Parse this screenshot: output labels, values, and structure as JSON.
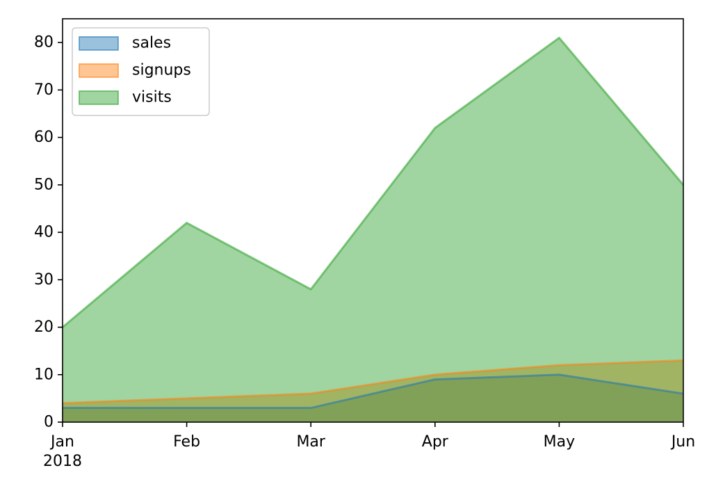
{
  "chart_data": {
    "type": "area",
    "x_labels": [
      "Jan",
      "Feb",
      "Mar",
      "Apr",
      "May",
      "Jun"
    ],
    "x_sublabel": "2018",
    "ylim": [
      0,
      85
    ],
    "y_ticks": [
      0,
      10,
      20,
      30,
      40,
      50,
      60,
      70,
      80
    ],
    "grid": false,
    "stacked": false,
    "legend_position": "upper-left",
    "series": [
      {
        "name": "sales",
        "values": [
          3,
          3,
          3,
          9,
          10,
          6
        ],
        "color": "#1f77b4"
      },
      {
        "name": "signups",
        "values": [
          4,
          5,
          6,
          10,
          12,
          13
        ],
        "color": "#ff7f0e"
      },
      {
        "name": "visits",
        "values": [
          20,
          42,
          28,
          62,
          81,
          50
        ],
        "color": "#2ca02c"
      }
    ]
  }
}
